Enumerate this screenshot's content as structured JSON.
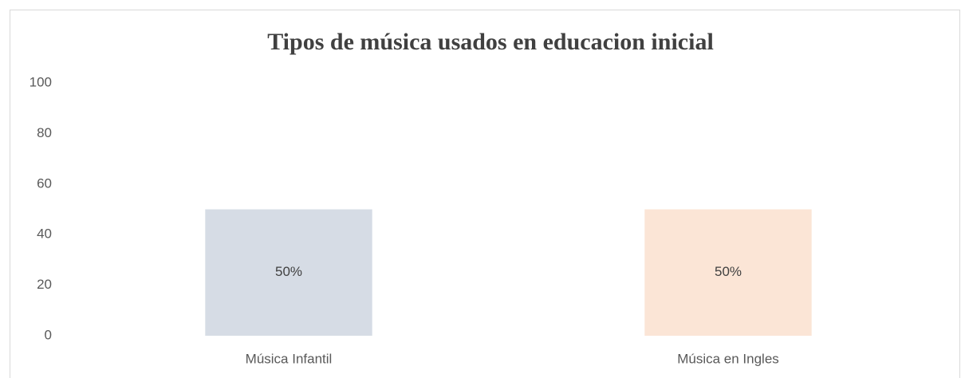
{
  "chart_data": {
    "type": "bar",
    "title": "Tipos de música usados en educacion inicial",
    "categories": [
      "Música Infantil",
      "Música en Ingles"
    ],
    "values": [
      50,
      50
    ],
    "value_labels": [
      "50%",
      "50%"
    ],
    "colors": [
      "#d6dce5",
      "#fbe5d6"
    ],
    "ylim": [
      0,
      100
    ],
    "yticks": [
      0,
      20,
      40,
      60,
      80,
      100
    ],
    "grid": false
  }
}
